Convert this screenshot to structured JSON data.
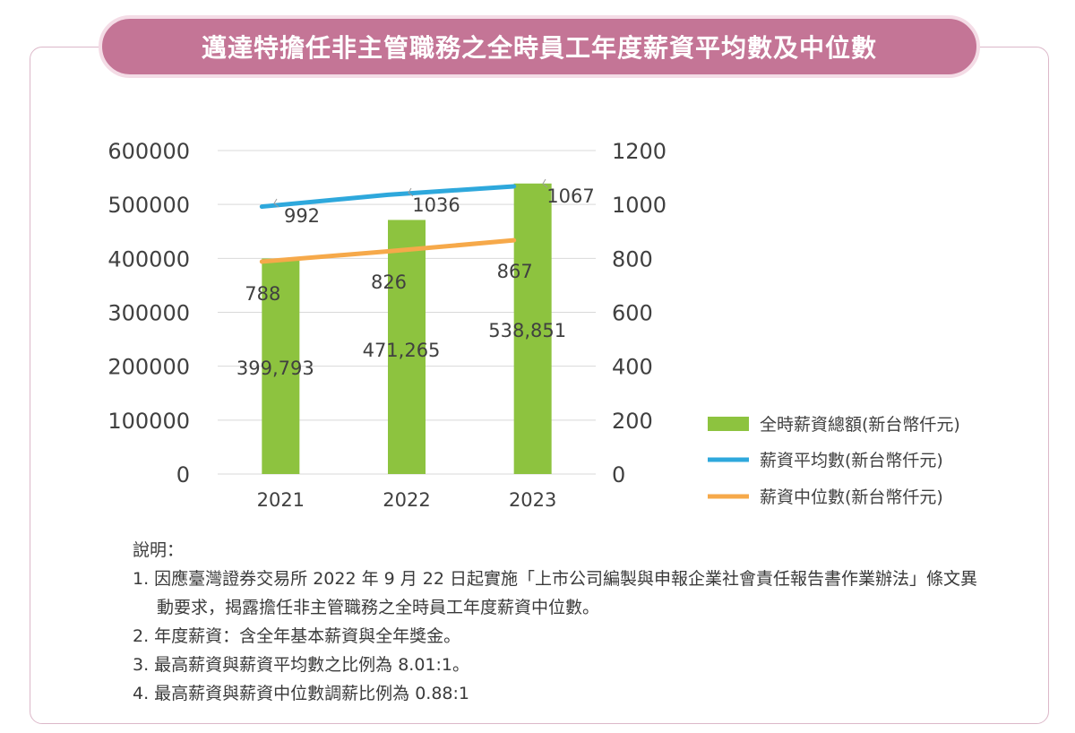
{
  "title": "邁達特擔任非主管職務之全時員工年度薪資平均數及中位數",
  "chart_data": {
    "type": "bar",
    "categories": [
      "2021",
      "2022",
      "2023"
    ],
    "left_axis": {
      "ylim": [
        0,
        600000
      ],
      "ticks": [
        "0",
        "100000",
        "200000",
        "300000",
        "400000",
        "500000",
        "600000"
      ]
    },
    "right_axis": {
      "ylim": [
        0,
        1200
      ],
      "ticks": [
        "0",
        "200",
        "400",
        "600",
        "800",
        "1000",
        "1200"
      ]
    },
    "grid": true,
    "legend_position": "right",
    "series": [
      {
        "name": "全時薪資總額(新台幣仟元)",
        "type": "bar",
        "axis": "left",
        "color": "#8dc33f",
        "values": [
          399793,
          471265,
          538851
        ],
        "labels": [
          "399,793",
          "471,265",
          "538,851"
        ]
      },
      {
        "name": "薪資平均數(新台幣仟元)",
        "type": "line",
        "axis": "right",
        "color": "#2ea8dc",
        "values": [
          992,
          1036,
          1067
        ],
        "labels": [
          "992",
          "1036",
          "1067"
        ]
      },
      {
        "name": "薪資中位數(新台幣仟元)",
        "type": "line",
        "axis": "right",
        "color": "#f6a94a",
        "values": [
          788,
          826,
          867
        ],
        "labels": [
          "788",
          "826",
          "867"
        ]
      }
    ]
  },
  "notes": {
    "heading": "說明：",
    "items": [
      "1. 因應臺灣證券交易所 2022 年 9 月 22 日起實施「上市公司編製與申報企業社會責任報告書作業辦法」條文異動要求，揭露擔任非主管職務之全時員工年度薪資中位數。",
      "2. 年度薪資：含全年基本薪資與全年獎金。",
      "3. 最高薪資與薪資平均數之比例為 8.01:1。",
      "4. 最高薪資與薪資中位數調薪比例為 0.88:1"
    ]
  }
}
